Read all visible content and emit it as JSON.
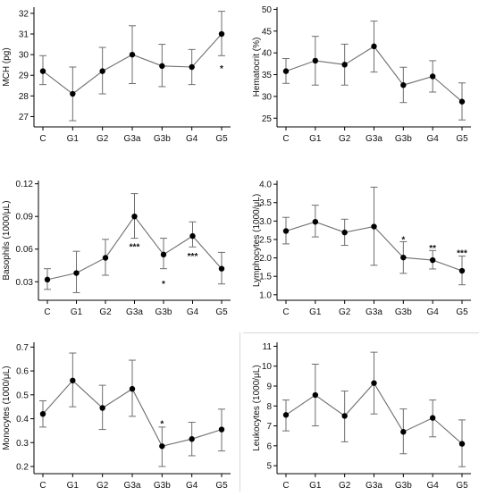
{
  "colors": {
    "line": "#6e6e6e",
    "point": "#000000",
    "axis": "#000000",
    "errorbar": "#6e6e6e"
  },
  "chart_data": [
    {
      "type": "line",
      "ylabel": "MCH (pg)",
      "categories": [
        "C",
        "G1",
        "G2",
        "G3a",
        "G3b",
        "G4",
        "G5"
      ],
      "ylim": [
        26.5,
        32.3
      ],
      "yticks": [
        27,
        28,
        29,
        30,
        31,
        32
      ],
      "series": [
        {
          "values": [
            29.2,
            28.1,
            29.2,
            30.0,
            29.45,
            29.4,
            31.0
          ],
          "err_low": [
            28.55,
            26.8,
            28.1,
            28.6,
            28.45,
            28.55,
            29.95
          ],
          "err_high": [
            29.95,
            29.4,
            30.35,
            31.4,
            30.5,
            30.25,
            32.1
          ]
        }
      ],
      "significance": [
        {
          "category": "G5",
          "text": "*",
          "y": 29.35
        }
      ]
    },
    {
      "type": "line",
      "ylabel": "Hematocrit (%)",
      "categories": [
        "C",
        "G1",
        "G2",
        "G3a",
        "G3b",
        "G4",
        "G5"
      ],
      "ylim": [
        23,
        50.5
      ],
      "yticks": [
        25,
        30,
        35,
        40,
        45,
        50
      ],
      "series": [
        {
          "values": [
            35.8,
            38.2,
            37.3,
            41.5,
            32.6,
            34.6,
            28.8
          ],
          "err_low": [
            33.0,
            32.6,
            32.6,
            35.6,
            28.6,
            31.0,
            24.6
          ],
          "err_high": [
            38.7,
            43.8,
            42.0,
            47.3,
            36.7,
            38.2,
            33.1
          ]
        }
      ],
      "significance": []
    },
    {
      "type": "line",
      "ylabel": "Basophils (1000/μL)",
      "categories": [
        "C",
        "G1",
        "G2",
        "G3a",
        "G3b",
        "G4",
        "G5"
      ],
      "ylim": [
        0.013,
        0.123
      ],
      "yticks": [
        0.03,
        0.06,
        0.09,
        0.12
      ],
      "ytick_labels": [
        "0.03",
        "0.06",
        "0.09",
        "0.12"
      ],
      "series": [
        {
          "values": [
            0.032,
            0.038,
            0.052,
            0.09,
            0.055,
            0.072,
            0.042
          ],
          "err_low": [
            0.023,
            0.02,
            0.036,
            0.07,
            0.042,
            0.062,
            0.028
          ],
          "err_high": [
            0.042,
            0.058,
            0.069,
            0.111,
            0.07,
            0.085,
            0.057
          ]
        }
      ],
      "significance": [
        {
          "category": "G3a",
          "text": "***",
          "y": 0.0628
        },
        {
          "category": "G3b",
          "text": "*",
          "y": 0.0284
        },
        {
          "category": "G4",
          "text": "***",
          "y": 0.0541
        }
      ]
    },
    {
      "type": "line",
      "ylabel": "Lymphocytes (1000/μL)",
      "categories": [
        "C",
        "G1",
        "G2",
        "G3a",
        "G3b",
        "G4",
        "G5"
      ],
      "ylim": [
        0.85,
        4.1
      ],
      "yticks": [
        1.0,
        1.5,
        2.0,
        2.5,
        3.0,
        3.5,
        4.0
      ],
      "ytick_labels": [
        "1.0",
        "1.5",
        "2.0",
        "2.5",
        "3.0",
        "3.5",
        "4.0"
      ],
      "series": [
        {
          "values": [
            2.73,
            2.98,
            2.69,
            2.85,
            2.01,
            1.94,
            1.65
          ],
          "err_low": [
            2.38,
            2.57,
            2.34,
            1.8,
            1.58,
            1.7,
            1.27
          ],
          "err_high": [
            3.1,
            3.43,
            3.05,
            3.92,
            2.44,
            2.2,
            2.05
          ]
        }
      ],
      "significance": [
        {
          "category": "G3b",
          "text": "*",
          "y": 2.51
        },
        {
          "category": "G4",
          "text": "**",
          "y": 2.28
        },
        {
          "category": "G5",
          "text": "***",
          "y": 2.15
        }
      ]
    },
    {
      "type": "line",
      "ylabel": "Monocytes (1000/μL)",
      "categories": [
        "C",
        "G1",
        "G2",
        "G3a",
        "G3b",
        "G4",
        "G5"
      ],
      "ylim": [
        0.17,
        0.72
      ],
      "yticks": [
        0.2,
        0.3,
        0.4,
        0.5,
        0.6,
        0.7
      ],
      "ytick_labels": [
        "0.2",
        "0.3",
        "0.4",
        "0.5",
        "0.6",
        "0.7"
      ],
      "series": [
        {
          "values": [
            0.42,
            0.56,
            0.445,
            0.525,
            0.285,
            0.315,
            0.355
          ],
          "err_low": [
            0.365,
            0.45,
            0.355,
            0.41,
            0.2,
            0.245,
            0.265
          ],
          "err_high": [
            0.475,
            0.675,
            0.54,
            0.645,
            0.365,
            0.385,
            0.44
          ]
        }
      ],
      "significance": [
        {
          "category": "G3b",
          "text": "*",
          "y": 0.382
        }
      ]
    },
    {
      "type": "line",
      "ylabel": "Leukocytes (1000/μL)",
      "categories": [
        "C",
        "G1",
        "G2",
        "G3a",
        "G3b",
        "G4",
        "G5"
      ],
      "ylim": [
        4.6,
        11.2
      ],
      "yticks": [
        5,
        6,
        7,
        8,
        9,
        10,
        11
      ],
      "series": [
        {
          "values": [
            7.55,
            8.55,
            7.5,
            9.15,
            6.7,
            7.4,
            6.1
          ],
          "err_low": [
            6.75,
            7.0,
            6.2,
            7.6,
            5.6,
            6.45,
            4.95
          ],
          "err_high": [
            8.3,
            10.1,
            8.75,
            10.7,
            7.85,
            8.3,
            7.3
          ]
        }
      ],
      "significance": []
    }
  ]
}
